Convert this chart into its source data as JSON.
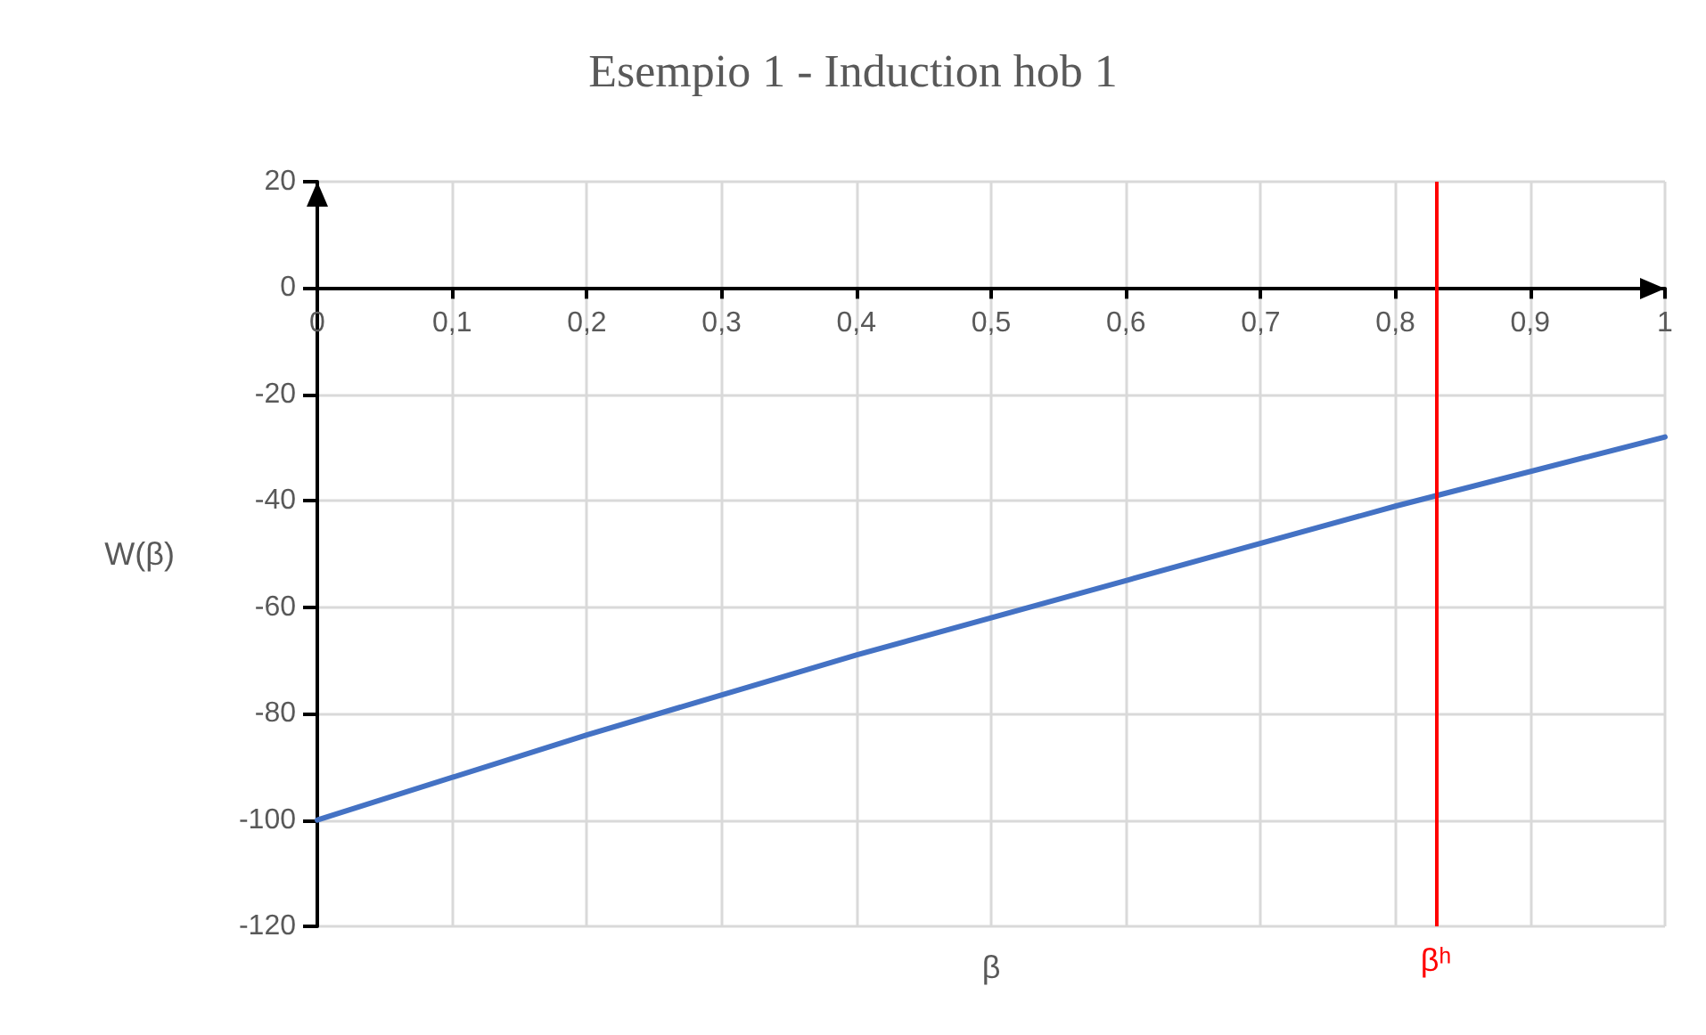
{
  "chart_data": {
    "type": "line",
    "title": "Esempio 1 - Induction hob 1",
    "xlabel": "β",
    "ylabel": "W(β)",
    "x": [
      0,
      0.2,
      0.4,
      0.6,
      0.8,
      1
    ],
    "series": [
      {
        "color": "#4472c4",
        "values": [
          -100,
          -84,
          -69,
          -55,
          -41,
          -28
        ]
      }
    ],
    "xlim": [
      0,
      1
    ],
    "xticks": [
      0,
      {
        "value": 0.1,
        "label": "0,1"
      },
      {
        "value": 0.2,
        "label": "0,2"
      },
      {
        "value": 0.3,
        "label": "0,3"
      },
      {
        "value": 0.4,
        "label": "0,4"
      },
      {
        "value": 0.5,
        "label": "0,5"
      },
      {
        "value": 0.6,
        "label": "0,6"
      },
      {
        "value": 0.7,
        "label": "0,7"
      },
      {
        "value": 0.8,
        "label": "0,8"
      },
      {
        "value": 0.9,
        "label": "0,9"
      },
      1
    ],
    "ylim": [
      -120,
      20
    ],
    "yticks": [
      -120,
      -100,
      -80,
      -60,
      -40,
      -20,
      0,
      20
    ],
    "ref_lines": [
      {
        "axis": "x",
        "value": 0.829,
        "label": "βʰ",
        "color": "#ff0000"
      }
    ],
    "grid": true,
    "marker": "none",
    "line_style": "solid"
  }
}
